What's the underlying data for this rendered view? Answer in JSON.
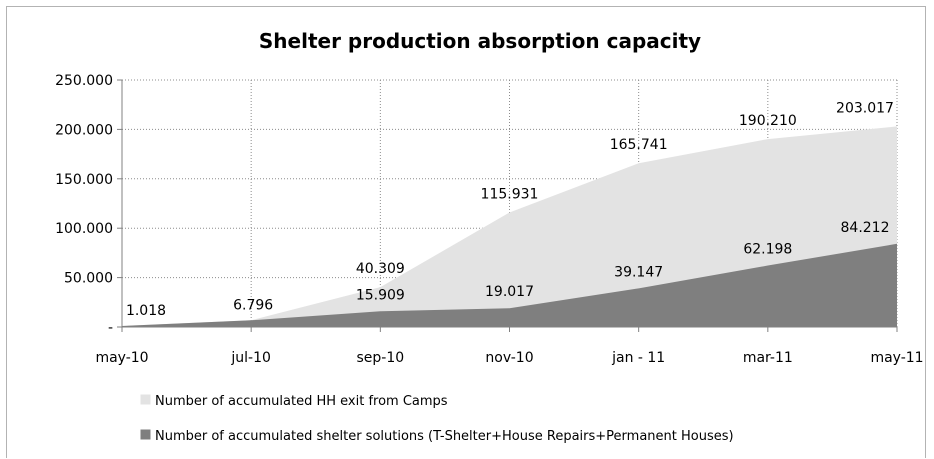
{
  "chart_data": {
    "type": "area",
    "title": "Shelter production absorption capacity",
    "xlabel": "",
    "ylabel": "",
    "categories": [
      "may-10",
      "jul-10",
      "sep-10",
      "nov-10",
      "jan - 11",
      "mar-11",
      "may-11"
    ],
    "ylim": [
      0,
      250000
    ],
    "yticks": [
      {
        "value": 0,
        "label": "-"
      },
      {
        "value": 50000,
        "label": "50.000"
      },
      {
        "value": 100000,
        "label": "100.000"
      },
      {
        "value": 150000,
        "label": "150.000"
      },
      {
        "value": 200000,
        "label": "200.000"
      },
      {
        "value": 250000,
        "label": "250.000"
      }
    ],
    "grid": true,
    "legend_position": "bottom",
    "series": [
      {
        "name": "Number of accumulated HH exit from Camps",
        "color": "#e3e3e3",
        "values": [
          1018,
          6796,
          40309,
          115931,
          165741,
          190210,
          203017
        ],
        "labels": [
          "1.018",
          "6.796",
          "40.309",
          "115.931",
          "165.741",
          "190.210",
          "203.017"
        ]
      },
      {
        "name": "Number of accumulated shelter solutions (T-Shelter+House Repairs+Permanent Houses)",
        "color": "#7f7f7f",
        "values": [
          1018,
          6796,
          15909,
          19017,
          39147,
          62198,
          84212
        ],
        "labels": [
          "1.018",
          "6.796",
          "15.909",
          "19.017",
          "39.147",
          "62.198",
          "84.212"
        ]
      }
    ]
  }
}
